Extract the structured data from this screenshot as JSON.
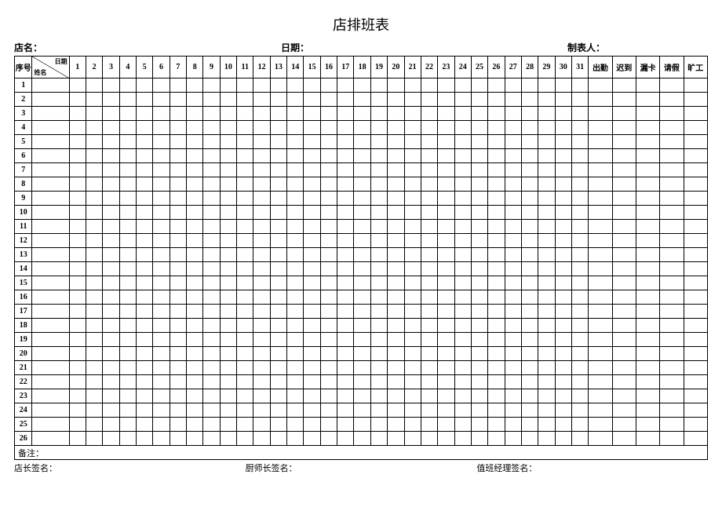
{
  "title": "店排班表",
  "meta": {
    "store_label": "店名：",
    "date_label": "日期：",
    "maker_label": "制表人："
  },
  "header": {
    "seq": "序号",
    "diag_top": "日期",
    "diag_bottom": "姓名",
    "days": [
      "1",
      "2",
      "3",
      "4",
      "5",
      "6",
      "7",
      "8",
      "9",
      "10",
      "11",
      "12",
      "13",
      "14",
      "15",
      "16",
      "17",
      "18",
      "19",
      "20",
      "21",
      "22",
      "23",
      "24",
      "25",
      "26",
      "27",
      "28",
      "29",
      "30",
      "31"
    ],
    "summary": [
      "出勤",
      "迟到",
      "漏卡",
      "请假",
      "旷工"
    ]
  },
  "row_count": 26,
  "remark_label": "备注：",
  "signatures": {
    "mgr": "店长签名：",
    "chef": "厨师长签名：",
    "duty": "值班经理签名："
  },
  "style": {
    "border_color": "#000000",
    "background": "#ffffff",
    "text_color": "#000000",
    "title_fontsize": 18,
    "header_fontsize": 10,
    "body_fontsize": 10
  }
}
